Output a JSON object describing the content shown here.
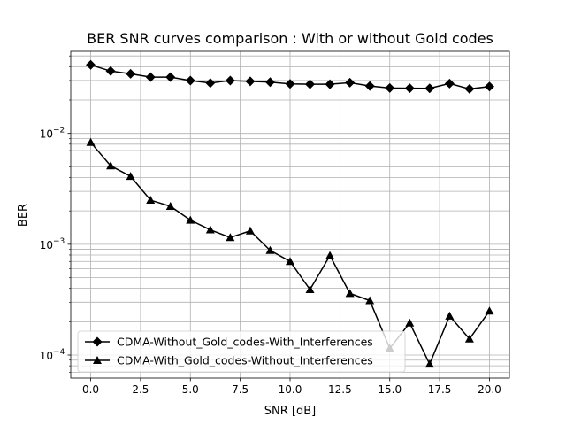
{
  "chart_data": {
    "type": "line",
    "title": "BER SNR curves comparison : With or without Gold codes",
    "xlabel": "SNR [dB]",
    "ylabel": "BER",
    "xlim": [
      -1,
      21
    ],
    "ylim": [
      6.2e-05,
      0.055
    ],
    "yscale": "log",
    "grid": true,
    "legend_position": "lower-left",
    "x_ticks": [
      0.0,
      2.5,
      5.0,
      7.5,
      10.0,
      12.5,
      15.0,
      17.5,
      20.0
    ],
    "x_tick_labels": [
      "0.0",
      "2.5",
      "5.0",
      "7.5",
      "10.0",
      "12.5",
      "15.0",
      "17.5",
      "20.0"
    ],
    "y_major_ticks": [
      {
        "value": 0.0001,
        "base": "10",
        "exp": "−4"
      },
      {
        "value": 0.001,
        "base": "10",
        "exp": "−3"
      },
      {
        "value": 0.01,
        "base": "10",
        "exp": "−2"
      }
    ],
    "x": [
      0,
      1,
      2,
      3,
      4,
      5,
      6,
      7,
      8,
      9,
      10,
      11,
      12,
      13,
      14,
      15,
      16,
      17,
      18,
      19,
      20
    ],
    "series": [
      {
        "name": "CDMA-Without_Gold_codes-With_Interferences",
        "marker": "diamond",
        "color": "#000000",
        "values": [
          0.0415,
          0.0365,
          0.0345,
          0.0322,
          0.0322,
          0.03,
          0.0285,
          0.03,
          0.0295,
          0.029,
          0.028,
          0.0278,
          0.0278,
          0.0287,
          0.0268,
          0.0257,
          0.0256,
          0.0255,
          0.0282,
          0.0252,
          0.0265
        ]
      },
      {
        "name": "CDMA-With_Gold_codes-Without_Interferences",
        "marker": "triangle",
        "color": "#000000",
        "values": [
          0.0083,
          0.0051,
          0.0041,
          0.0025,
          0.0022,
          0.00165,
          0.00135,
          0.00115,
          0.00132,
          0.00088,
          0.0007,
          0.00039,
          0.00079,
          0.00036,
          0.00031,
          0.000115,
          0.000195,
          8.3e-05,
          0.000225,
          0.00014,
          0.00025
        ]
      }
    ]
  }
}
